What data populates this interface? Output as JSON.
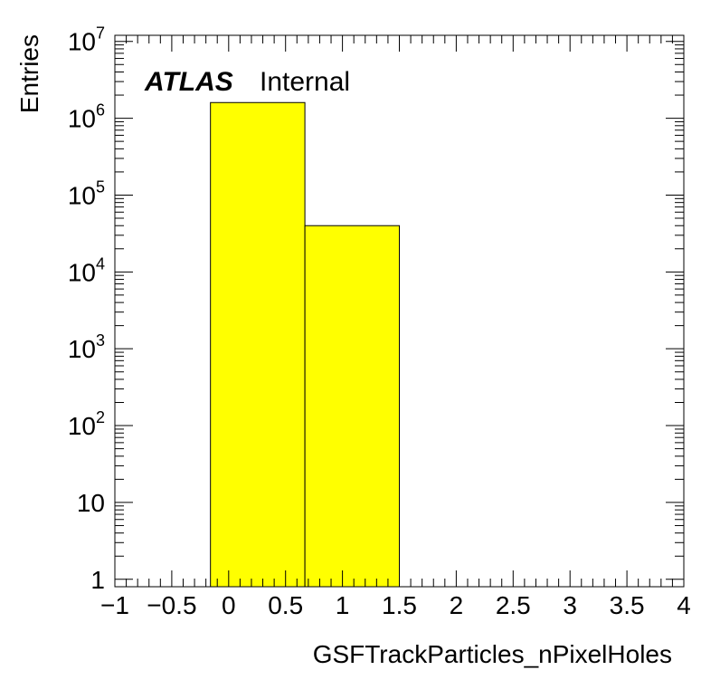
{
  "chart_data": {
    "type": "bar",
    "title": "",
    "xlabel": "GSFTrackParticles_nPixelHoles",
    "ylabel": "Entries",
    "xlim": [
      -1,
      4
    ],
    "ylim": [
      0.8,
      12000000
    ],
    "yscale": "log",
    "bins": [
      {
        "low": -0.16,
        "high": 0.67,
        "value": 1600000
      },
      {
        "low": 0.67,
        "high": 1.5,
        "value": 40000
      }
    ],
    "xticks": [
      {
        "value": -1,
        "label": "−1"
      },
      {
        "value": -0.5,
        "label": "−0.5"
      },
      {
        "value": 0,
        "label": "0"
      },
      {
        "value": 0.5,
        "label": "0.5"
      },
      {
        "value": 1,
        "label": "1"
      },
      {
        "value": 1.5,
        "label": "1.5"
      },
      {
        "value": 2,
        "label": "2"
      },
      {
        "value": 2.5,
        "label": "2.5"
      },
      {
        "value": 3,
        "label": "3"
      },
      {
        "value": 3.5,
        "label": "3.5"
      },
      {
        "value": 4,
        "label": "4"
      }
    ],
    "yticks": [
      {
        "value": 1,
        "base": "1",
        "exp": ""
      },
      {
        "value": 10,
        "base": "10",
        "exp": ""
      },
      {
        "value": 100,
        "base": "10",
        "exp": "2"
      },
      {
        "value": 1000,
        "base": "10",
        "exp": "3"
      },
      {
        "value": 10000,
        "base": "10",
        "exp": "4"
      },
      {
        "value": 100000,
        "base": "10",
        "exp": "5"
      },
      {
        "value": 1000000,
        "base": "10",
        "exp": "6"
      },
      {
        "value": 10000000,
        "base": "10",
        "exp": "7"
      }
    ],
    "grid": false,
    "fill_color": "#ffff00",
    "edge_color": "#000000"
  },
  "label": {
    "experiment": "ATLAS",
    "status": "Internal"
  }
}
